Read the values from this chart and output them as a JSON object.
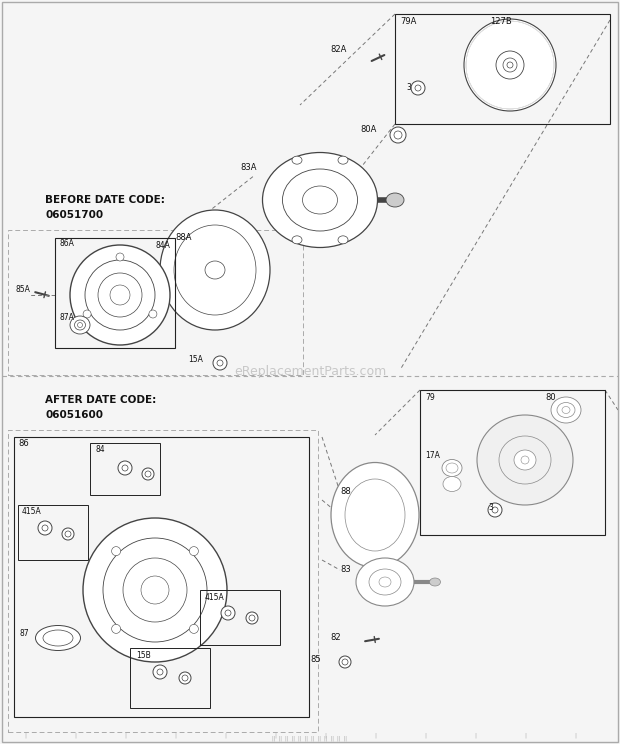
{
  "bg_color": "#f5f5f5",
  "line_color": "#222222",
  "gray": "#888888",
  "dgray": "#444444",
  "lgray": "#cccccc",
  "watermark": "eReplacementParts.com",
  "before_label": "BEFORE DATE CODE:",
  "before_code": "06051700",
  "after_label": "AFTER DATE CODE:",
  "after_code": "06051600",
  "fig_w": 6.2,
  "fig_h": 7.44,
  "dpi": 100
}
